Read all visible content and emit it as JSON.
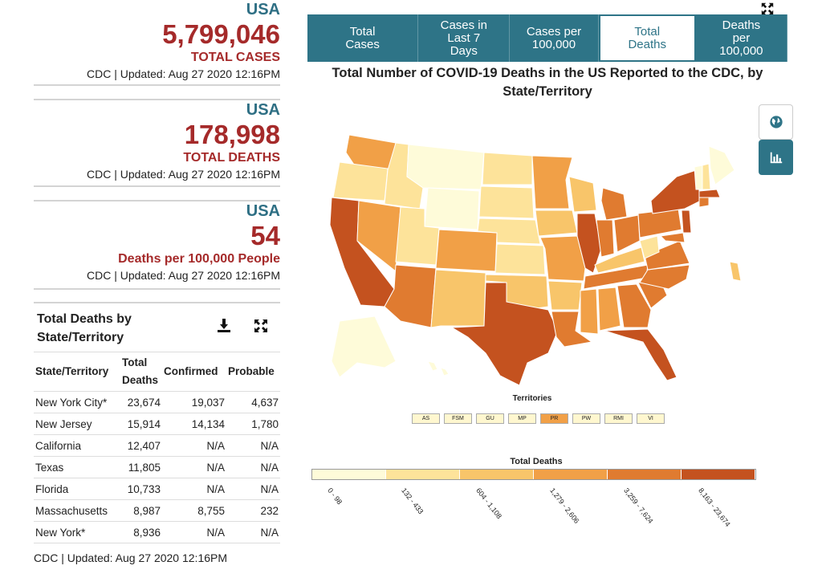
{
  "stats": [
    {
      "region": "USA",
      "value": "5,799,046",
      "label": "TOTAL CASES",
      "updated": "CDC | Updated: Aug 27 2020 12:16PM"
    },
    {
      "region": "USA",
      "value": "178,998",
      "label": "TOTAL DEATHS",
      "updated": "CDC | Updated: Aug 27 2020 12:16PM"
    },
    {
      "region": "USA",
      "value": "54",
      "label": "Deaths per 100,000 People",
      "updated": "CDC | Updated: Aug 27 2020 12:16PM"
    }
  ],
  "table": {
    "title": "Total Deaths by State/Territory",
    "icons": [
      "download-icon",
      "expand-icon"
    ],
    "columns": [
      "State/Territory",
      "Total Deaths",
      "Confirmed",
      "Probable"
    ],
    "rows": [
      [
        "New York City*",
        "23,674",
        "19,037",
        "4,637"
      ],
      [
        "New Jersey",
        "15,914",
        "14,134",
        "1,780"
      ],
      [
        "California",
        "12,407",
        "N/A",
        "N/A"
      ],
      [
        "Texas",
        "11,805",
        "N/A",
        "N/A"
      ],
      [
        "Florida",
        "10,733",
        "N/A",
        "N/A"
      ],
      [
        "Massachusetts",
        "8,987",
        "8,755",
        "232"
      ],
      [
        "New York*",
        "8,936",
        "N/A",
        "N/A"
      ]
    ],
    "updated": "CDC | Updated: Aug 27 2020 12:16PM"
  },
  "tabs": [
    {
      "label": "Total Cases",
      "active": false
    },
    {
      "label": "Cases in Last 7 Days",
      "active": false
    },
    {
      "label": "Cases per 100,000",
      "active": false
    },
    {
      "label": "Total Deaths",
      "active": true
    },
    {
      "label": "Deaths per 100,000",
      "active": false
    }
  ],
  "map": {
    "title": "Total Number of COVID-19 Deaths in the US Reported to the CDC, by State/Territory",
    "side_buttons": [
      "globe-icon",
      "bar-chart-icon"
    ],
    "territories_title": "Territories",
    "territories": [
      "AS",
      "FSM",
      "GU",
      "MP",
      "PR",
      "PW",
      "RMI",
      "VI"
    ],
    "legend_title": "Total Deaths",
    "legend": [
      {
        "label": "0 - 98",
        "color": "#fefbd9"
      },
      {
        "label": "132 - 433",
        "color": "#fde39a"
      },
      {
        "label": "604 - 1,108",
        "color": "#f8c56a"
      },
      {
        "label": "1,279 - 2,606",
        "color": "#f1a047"
      },
      {
        "label": "3,259 - 7,624",
        "color": "#e07b30"
      },
      {
        "label": "8,163 - 23,674",
        "color": "#c4521f"
      }
    ]
  },
  "colors": {
    "accent": "#2e7487",
    "value_red": "#a52a2a",
    "region_blue": "#2e6f84"
  }
}
